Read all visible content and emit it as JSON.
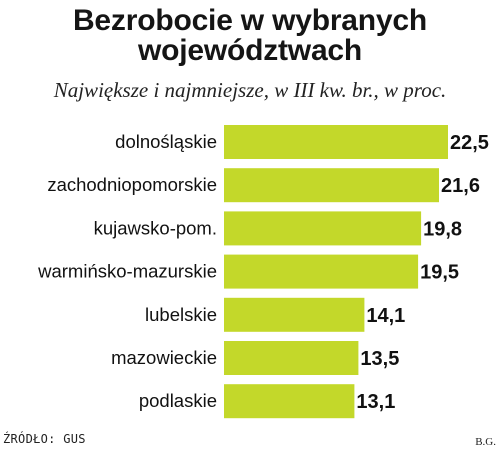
{
  "header": {
    "title_line1": "Bezrobocie w wybranych",
    "title_line2": "województwach",
    "subtitle": "Największe i najmniejsze, w III kw. br., w proc."
  },
  "footer": {
    "source": "ŹRÓDŁO: GUS",
    "author": "B.G."
  },
  "colors": {
    "bar": "#c3d82a",
    "text": "#111111"
  },
  "chart_data": {
    "type": "bar",
    "orientation": "horizontal",
    "categories": [
      "dolnośląskie",
      "zachodniopomorskie",
      "kujawsko-pom.",
      "warmińsko-mazurskie",
      "lubelskie",
      "mazowieckie",
      "podlaskie"
    ],
    "values": [
      22.5,
      21.6,
      19.8,
      19.5,
      14.1,
      13.5,
      13.1
    ],
    "value_labels": [
      "22,5",
      "21,6",
      "19,8",
      "19,5",
      "14,1",
      "13,5",
      "13,1"
    ],
    "title": "Bezrobocie w wybranych województwach",
    "subtitle": "Największe i najmniejsze, w III kw. br., w proc.",
    "xlim": [
      0,
      22.5
    ],
    "grid": false,
    "legend": "none"
  }
}
